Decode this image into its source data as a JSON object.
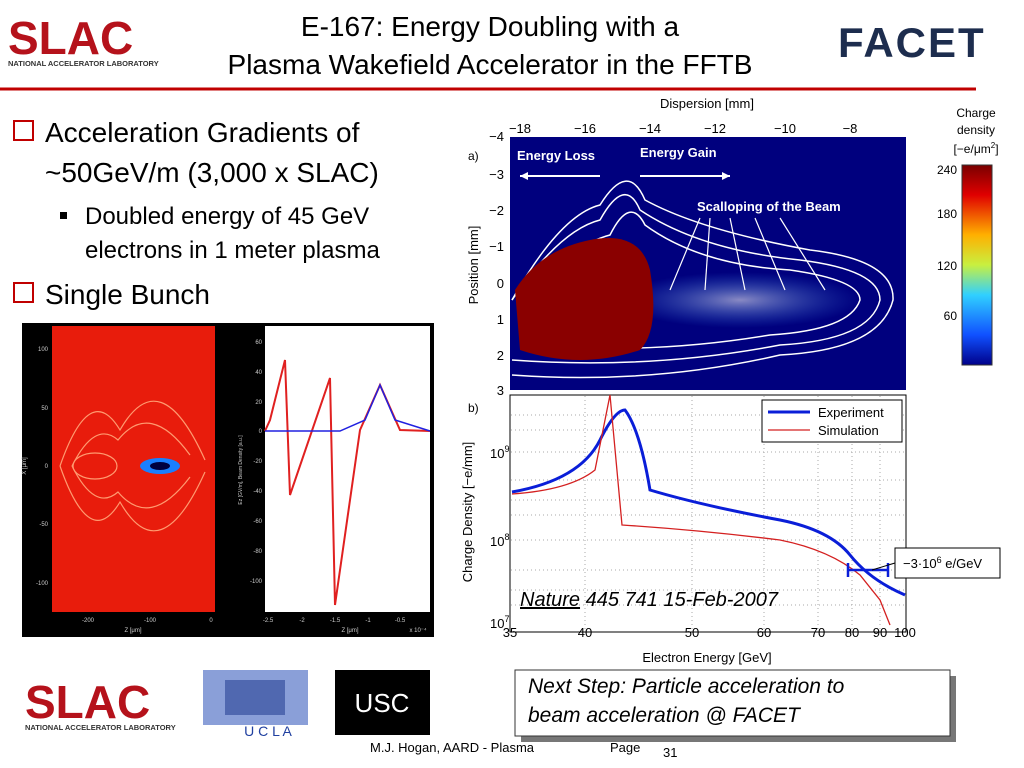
{
  "header": {
    "title_lines": [
      "E-167: Energy Doubling with a",
      "Plasma Wakefield Accelerator in the FFTB"
    ],
    "left_logo": {
      "name": "SLAC",
      "subtitle": "NATIONAL ACCELERATOR LABORATORY"
    },
    "right_logo": "FACET"
  },
  "bullets": [
    {
      "lines": [
        "Acceleration Gradients of",
        "~50GeV/m (3,000 x SLAC)"
      ],
      "sub": [
        "Doubled energy of 45 GeV",
        "electrons in 1 meter plasma"
      ]
    },
    {
      "lines": [
        "Single Bunch"
      ]
    }
  ],
  "simulation": {
    "left_yticks": [
      "100",
      "50",
      "0",
      "-50",
      "-100"
    ],
    "left_xticks": [
      "-200",
      "-100",
      "0"
    ],
    "left_ylabel": "X [μm]",
    "left_xlabel": "Z [μm]",
    "right_yticks": [
      "60",
      "40",
      "20",
      "0",
      "-20",
      "-40",
      "-60",
      "-80",
      "-100"
    ],
    "right_xticks": [
      "-2.5",
      "-2",
      "-1.5",
      "-1",
      "-0.5"
    ],
    "right_xlabel": "Z [μm]",
    "right_xscale": "x 10⁻⁴",
    "right_ylabel": "Ez [GV/m], Beam Density [a.u.]"
  },
  "figure_a": {
    "panel": "a)",
    "top_axis_label": "Dispersion [mm]",
    "top_ticks": [
      "−18",
      "−16",
      "−14",
      "−12",
      "−10",
      "−8"
    ],
    "ylabel": "Position [mm]",
    "yticks": [
      "−4",
      "−3",
      "−2",
      "−1",
      "0",
      "1",
      "2",
      "3"
    ],
    "annotations": [
      "Energy Loss",
      "Energy Gain",
      "Scalloping of the Beam"
    ],
    "colorbar": {
      "title_lines": [
        "Charge",
        "density"
      ],
      "unit": "[−e/μm",
      "unit_sup": "2",
      "unit_end": "]",
      "ticks": [
        "240",
        "180",
        "120",
        "60"
      ]
    }
  },
  "figure_b": {
    "panel": "b)",
    "ylabel": "Charge Density [−e/mm]",
    "xlabel": "Electron Energy [GeV]",
    "xticks": [
      "35",
      "40",
      "50",
      "60",
      "70",
      "80",
      "90",
      "100"
    ],
    "yticks": [
      {
        "base": "10",
        "exp": "9"
      },
      {
        "base": "10",
        "exp": "8"
      },
      {
        "base": "10",
        "exp": "7"
      }
    ],
    "legend": [
      "Experiment",
      "Simulation"
    ],
    "slope_label": {
      "pre": "−3·10",
      "exp": "6",
      "post": " e/GeV"
    },
    "citation": {
      "journal": "Nature",
      "rest": " 445 741 15-Feb-2007"
    }
  },
  "footer": {
    "logos": {
      "slac": "SLAC",
      "slac_subtitle": "NATIONAL ACCELERATOR LABORATORY",
      "ucla": "U C L A",
      "usc": "USC"
    },
    "next_step_lines": [
      "Next Step: Particle acceleration to",
      "beam acceleration @ FACET"
    ],
    "author": "M.J. Hogan, AARD - Plasma",
    "page_label": "Page",
    "page_number": "31"
  }
}
